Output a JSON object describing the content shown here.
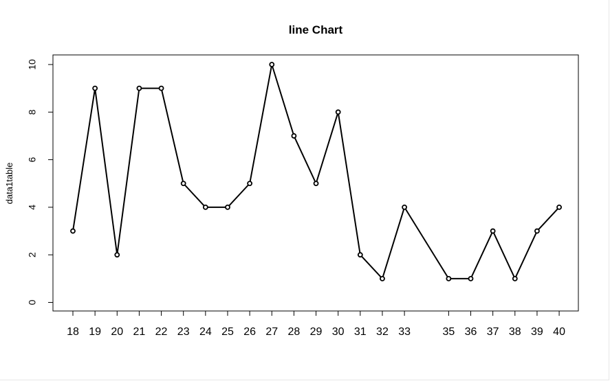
{
  "chart_data": {
    "type": "line",
    "title": "line Chart",
    "xlabel": "",
    "ylabel": "data1table",
    "x": [
      18,
      19,
      20,
      21,
      22,
      23,
      24,
      25,
      26,
      27,
      28,
      29,
      30,
      31,
      32,
      33,
      35,
      36,
      37,
      38,
      39,
      40
    ],
    "x_labels": [
      "18",
      "19",
      "20",
      "21",
      "22",
      "23",
      "24",
      "25",
      "26",
      "27",
      "28",
      "29",
      "30",
      "31",
      "32",
      "33",
      "35",
      "36",
      "37",
      "38",
      "39",
      "40"
    ],
    "y": [
      3,
      9,
      2,
      9,
      9,
      5,
      4,
      4,
      5,
      10,
      7,
      5,
      8,
      2,
      1,
      4,
      1,
      1,
      3,
      1,
      3,
      4
    ],
    "y_ticks": [
      0,
      2,
      4,
      6,
      8,
      10
    ],
    "y_tick_labels": [
      "0",
      "2",
      "4",
      "6",
      "8",
      "10"
    ],
    "ylim": [
      0,
      10
    ],
    "grid": false,
    "marker": "open-circle",
    "line_color": "#000000"
  }
}
